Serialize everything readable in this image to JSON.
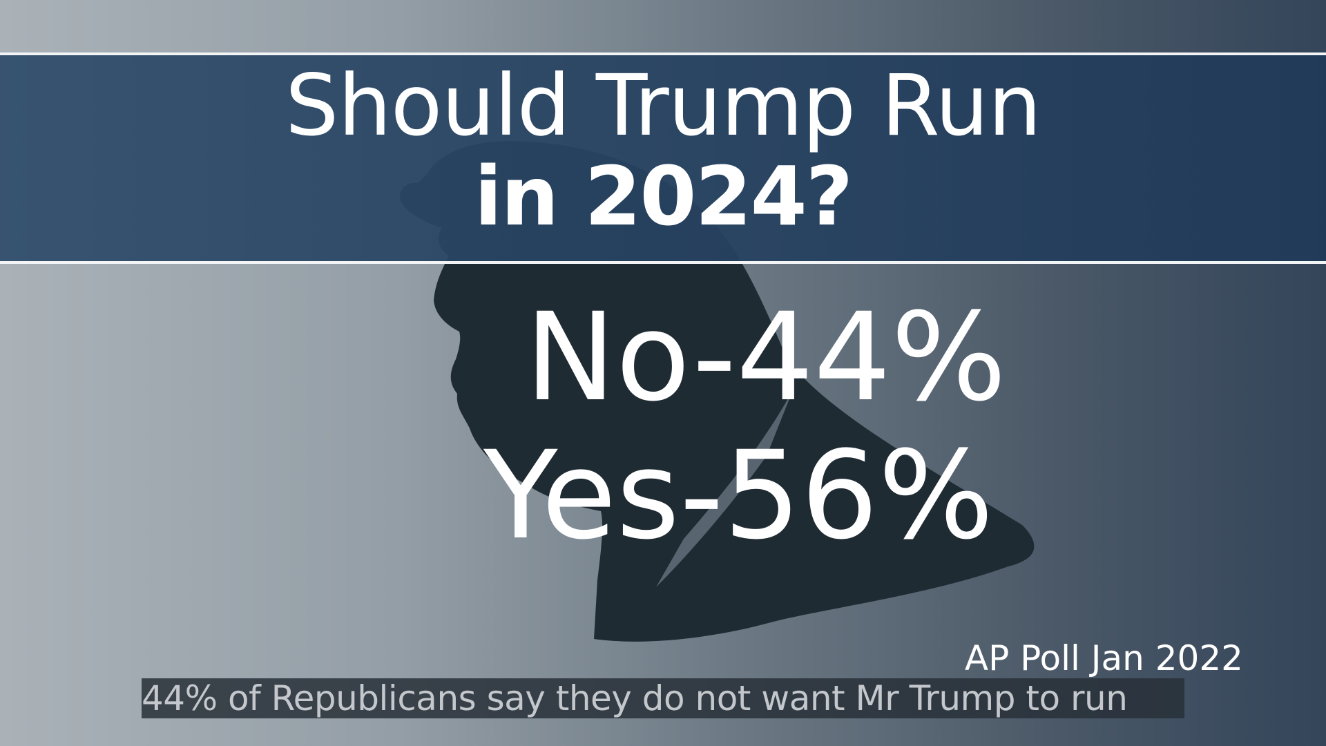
{
  "title": {
    "line1": "Should Trump Run",
    "line2": "in 2024?"
  },
  "results": {
    "no": "No-44%",
    "yes": "Yes-56%"
  },
  "source": "AP Poll Jan 2022",
  "caption": "44% of Republicans say they do not want Mr Trump to run",
  "colors": {
    "banner": "#2b4a6a",
    "silhouette": "#1f2b33",
    "caption_bg": "#283038"
  }
}
